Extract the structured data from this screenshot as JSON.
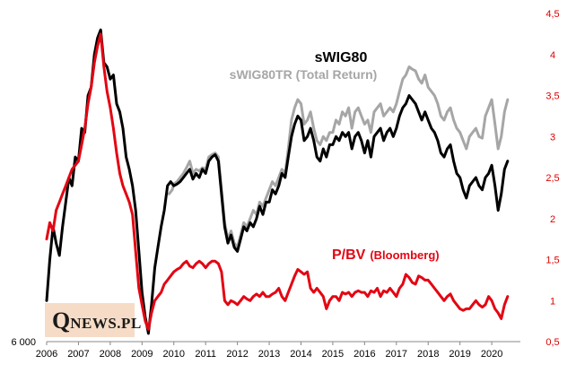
{
  "chart_data": {
    "type": "line",
    "title": "sWIG80",
    "subtitle": "sWIG80TR (Total Return)",
    "annotation": "P/BV",
    "annotation_source": "(Bloomberg)",
    "logo": "QNEWS.PL",
    "x_ticks": [
      "2006",
      "2007",
      "2008",
      "2009",
      "2010",
      "2011",
      "2012",
      "2013",
      "2014",
      "2015",
      "2016",
      "2017",
      "2018",
      "2019",
      "2020"
    ],
    "xlim": [
      2006.0,
      2020.9
    ],
    "left_axis": {
      "ticks": [
        "6 000"
      ],
      "ylim": [
        0.5,
        4.5
      ]
    },
    "right_axis": {
      "ticks": [
        "0,5",
        "1",
        "1,5",
        "2",
        "2,5",
        "3",
        "3,5",
        "4",
        "4,5"
      ],
      "ylim": [
        0.5,
        4.5
      ],
      "color": "#dd0000"
    },
    "grid": false,
    "colors": {
      "swig80": "#000000",
      "swig80tr": "#a6a6a6",
      "pbv": "#e30613"
    },
    "series": [
      {
        "name": "sWIG80TR (Total Return)",
        "axis": "right",
        "x": [
          2009.85,
          2009.95,
          2010.0,
          2010.1,
          2010.2,
          2010.3,
          2010.4,
          2010.5,
          2010.6,
          2010.7,
          2010.8,
          2010.9,
          2011.0,
          2011.1,
          2011.2,
          2011.3,
          2011.4,
          2011.5,
          2011.6,
          2011.7,
          2011.8,
          2011.9,
          2012.0,
          2012.1,
          2012.2,
          2012.3,
          2012.4,
          2012.5,
          2012.6,
          2012.7,
          2012.8,
          2012.9,
          2013.0,
          2013.1,
          2013.2,
          2013.3,
          2013.4,
          2013.5,
          2013.6,
          2013.7,
          2013.8,
          2013.9,
          2014.0,
          2014.1,
          2014.2,
          2014.3,
          2014.4,
          2014.5,
          2014.6,
          2014.7,
          2014.8,
          2014.9,
          2015.0,
          2015.1,
          2015.2,
          2015.3,
          2015.4,
          2015.5,
          2015.6,
          2015.7,
          2015.8,
          2015.9,
          2016.0,
          2016.1,
          2016.2,
          2016.3,
          2016.4,
          2016.5,
          2016.6,
          2016.7,
          2016.8,
          2016.9,
          2017.0,
          2017.1,
          2017.2,
          2017.3,
          2017.4,
          2017.5,
          2017.6,
          2017.7,
          2017.8,
          2017.9,
          2018.0,
          2018.1,
          2018.2,
          2018.3,
          2018.4,
          2018.5,
          2018.6,
          2018.7,
          2018.8,
          2018.9,
          2019.0,
          2019.1,
          2019.2,
          2019.3,
          2019.4,
          2019.5,
          2019.6,
          2019.7,
          2019.8,
          2019.9,
          2020.0,
          2020.1,
          2020.2,
          2020.3,
          2020.4,
          2020.5
        ],
        "y": [
          2.3,
          2.35,
          2.42,
          2.45,
          2.5,
          2.55,
          2.62,
          2.7,
          2.55,
          2.6,
          2.58,
          2.62,
          2.6,
          2.75,
          2.78,
          2.8,
          2.75,
          2.35,
          1.95,
          1.75,
          1.85,
          1.7,
          1.65,
          1.8,
          1.95,
          1.9,
          2.0,
          2.1,
          2.05,
          2.2,
          2.15,
          2.25,
          2.35,
          2.45,
          2.4,
          2.5,
          2.6,
          2.55,
          2.85,
          3.2,
          3.35,
          3.45,
          3.4,
          3.15,
          3.2,
          3.3,
          3.1,
          2.95,
          2.9,
          3.0,
          2.95,
          3.05,
          3.05,
          3.2,
          3.15,
          3.3,
          3.25,
          3.35,
          3.1,
          3.3,
          3.35,
          3.25,
          3.15,
          3.2,
          3.05,
          3.3,
          3.35,
          3.4,
          3.25,
          3.3,
          3.35,
          3.3,
          3.4,
          3.55,
          3.7,
          3.75,
          3.85,
          3.82,
          3.8,
          3.7,
          3.65,
          3.75,
          3.6,
          3.55,
          3.5,
          3.4,
          3.25,
          3.2,
          3.3,
          3.35,
          3.2,
          3.1,
          3.05,
          2.95,
          2.85,
          3.0,
          3.05,
          3.1,
          3.0,
          2.98,
          3.25,
          3.35,
          3.45,
          3.15,
          2.85,
          3.0,
          3.3,
          3.45
        ]
      },
      {
        "name": "sWIG80",
        "axis": "right",
        "x": [
          2006.0,
          2006.1,
          2006.2,
          2006.3,
          2006.4,
          2006.5,
          2006.6,
          2006.7,
          2006.8,
          2006.9,
          2007.0,
          2007.1,
          2007.2,
          2007.3,
          2007.4,
          2007.5,
          2007.6,
          2007.7,
          2007.8,
          2007.9,
          2008.0,
          2008.1,
          2008.2,
          2008.3,
          2008.4,
          2008.5,
          2008.6,
          2008.7,
          2008.8,
          2008.9,
          2009.0,
          2009.1,
          2009.2,
          2009.3,
          2009.4,
          2009.5,
          2009.6,
          2009.7,
          2009.8,
          2009.9,
          2010.0,
          2010.1,
          2010.2,
          2010.3,
          2010.4,
          2010.5,
          2010.6,
          2010.7,
          2010.8,
          2010.9,
          2011.0,
          2011.1,
          2011.2,
          2011.3,
          2011.4,
          2011.5,
          2011.6,
          2011.7,
          2011.8,
          2011.9,
          2012.0,
          2012.1,
          2012.2,
          2012.3,
          2012.4,
          2012.5,
          2012.6,
          2012.7,
          2012.8,
          2012.9,
          2013.0,
          2013.1,
          2013.2,
          2013.3,
          2013.4,
          2013.5,
          2013.6,
          2013.7,
          2013.8,
          2013.9,
          2014.0,
          2014.1,
          2014.2,
          2014.3,
          2014.4,
          2014.5,
          2014.6,
          2014.7,
          2014.8,
          2014.9,
          2015.0,
          2015.1,
          2015.2,
          2015.3,
          2015.4,
          2015.5,
          2015.6,
          2015.7,
          2015.8,
          2015.9,
          2016.0,
          2016.1,
          2016.2,
          2016.3,
          2016.4,
          2016.5,
          2016.6,
          2016.7,
          2016.8,
          2016.9,
          2017.0,
          2017.1,
          2017.2,
          2017.3,
          2017.4,
          2017.5,
          2017.6,
          2017.7,
          2017.8,
          2017.9,
          2018.0,
          2018.1,
          2018.2,
          2018.3,
          2018.4,
          2018.5,
          2018.6,
          2018.7,
          2018.8,
          2018.9,
          2019.0,
          2019.1,
          2019.2,
          2019.3,
          2019.4,
          2019.5,
          2019.6,
          2019.7,
          2019.8,
          2019.9,
          2020.0,
          2020.1,
          2020.2,
          2020.3,
          2020.4,
          2020.5
        ],
        "y": [
          1.0,
          1.5,
          1.9,
          1.7,
          1.55,
          1.9,
          2.2,
          2.5,
          2.4,
          2.75,
          2.7,
          3.1,
          3.05,
          3.5,
          3.6,
          4.0,
          4.2,
          4.3,
          3.9,
          3.85,
          3.7,
          3.75,
          3.4,
          3.3,
          3.1,
          2.75,
          2.6,
          2.4,
          2.1,
          1.6,
          1.1,
          0.8,
          0.6,
          0.95,
          1.4,
          1.65,
          1.9,
          2.1,
          2.4,
          2.45,
          2.4,
          2.42,
          2.45,
          2.5,
          2.55,
          2.6,
          2.48,
          2.55,
          2.5,
          2.6,
          2.55,
          2.7,
          2.75,
          2.78,
          2.7,
          2.3,
          1.9,
          1.7,
          1.8,
          1.65,
          1.6,
          1.75,
          1.9,
          1.85,
          1.95,
          1.9,
          2.0,
          2.15,
          2.05,
          2.2,
          2.2,
          2.35,
          2.3,
          2.4,
          2.55,
          2.5,
          2.75,
          3.0,
          3.15,
          3.25,
          3.2,
          2.95,
          3.0,
          3.1,
          2.95,
          2.75,
          2.7,
          2.85,
          2.75,
          2.9,
          2.9,
          3.0,
          2.95,
          3.05,
          3.0,
          3.05,
          2.85,
          3.0,
          3.05,
          2.95,
          2.8,
          2.95,
          2.75,
          3.0,
          3.05,
          3.1,
          2.95,
          3.05,
          3.1,
          3.0,
          3.1,
          3.25,
          3.35,
          3.4,
          3.5,
          3.45,
          3.4,
          3.3,
          3.2,
          3.3,
          3.2,
          3.1,
          3.05,
          2.95,
          2.8,
          2.75,
          2.85,
          2.9,
          2.7,
          2.55,
          2.5,
          2.35,
          2.25,
          2.4,
          2.45,
          2.5,
          2.4,
          2.35,
          2.5,
          2.55,
          2.65,
          2.4,
          2.1,
          2.3,
          2.6,
          2.7
        ]
      },
      {
        "name": "P/BV (Bloomberg)",
        "axis": "right",
        "x": [
          2006.0,
          2006.1,
          2006.2,
          2006.3,
          2006.4,
          2006.5,
          2006.6,
          2006.7,
          2006.8,
          2006.9,
          2007.0,
          2007.1,
          2007.2,
          2007.3,
          2007.4,
          2007.5,
          2007.6,
          2007.7,
          2007.8,
          2007.9,
          2008.0,
          2008.1,
          2008.2,
          2008.3,
          2008.4,
          2008.5,
          2008.6,
          2008.7,
          2008.8,
          2008.9,
          2009.0,
          2009.1,
          2009.2,
          2009.3,
          2009.4,
          2009.5,
          2009.6,
          2009.7,
          2009.8,
          2009.9,
          2010.0,
          2010.1,
          2010.2,
          2010.3,
          2010.4,
          2010.5,
          2010.6,
          2010.7,
          2010.8,
          2010.9,
          2011.0,
          2011.1,
          2011.2,
          2011.3,
          2011.4,
          2011.5,
          2011.6,
          2011.7,
          2011.8,
          2011.9,
          2012.0,
          2012.1,
          2012.2,
          2012.3,
          2012.4,
          2012.5,
          2012.6,
          2012.7,
          2012.8,
          2012.9,
          2013.0,
          2013.1,
          2013.2,
          2013.3,
          2013.4,
          2013.5,
          2013.6,
          2013.7,
          2013.8,
          2013.9,
          2014.0,
          2014.1,
          2014.2,
          2014.3,
          2014.4,
          2014.5,
          2014.6,
          2014.7,
          2014.8,
          2014.9,
          2015.0,
          2015.1,
          2015.2,
          2015.3,
          2015.4,
          2015.5,
          2015.6,
          2015.7,
          2015.8,
          2015.9,
          2016.0,
          2016.1,
          2016.2,
          2016.3,
          2016.4,
          2016.5,
          2016.6,
          2016.7,
          2016.8,
          2016.9,
          2017.0,
          2017.1,
          2017.2,
          2017.3,
          2017.4,
          2017.5,
          2017.6,
          2017.7,
          2017.8,
          2017.9,
          2018.0,
          2018.1,
          2018.2,
          2018.3,
          2018.4,
          2018.5,
          2018.6,
          2018.7,
          2018.8,
          2018.9,
          2019.0,
          2019.1,
          2019.2,
          2019.3,
          2019.4,
          2019.5,
          2019.6,
          2019.7,
          2019.8,
          2019.9,
          2020.0,
          2020.1,
          2020.2,
          2020.3,
          2020.4,
          2020.5
        ],
        "y": [
          1.75,
          1.95,
          1.85,
          2.1,
          2.2,
          2.3,
          2.4,
          2.5,
          2.6,
          2.65,
          2.7,
          2.9,
          3.1,
          3.4,
          3.6,
          3.9,
          4.1,
          4.25,
          3.85,
          3.55,
          3.35,
          3.1,
          2.8,
          2.55,
          2.4,
          2.3,
          2.2,
          2.05,
          1.6,
          1.15,
          0.95,
          0.75,
          0.65,
          0.85,
          1.0,
          1.05,
          1.1,
          1.2,
          1.25,
          1.3,
          1.35,
          1.38,
          1.4,
          1.45,
          1.48,
          1.42,
          1.4,
          1.45,
          1.48,
          1.45,
          1.4,
          1.45,
          1.48,
          1.48,
          1.45,
          1.35,
          1.0,
          0.95,
          1.0,
          0.98,
          0.95,
          1.0,
          1.05,
          1.02,
          1.0,
          1.05,
          1.08,
          1.05,
          1.1,
          1.05,
          1.05,
          1.08,
          1.1,
          1.15,
          1.05,
          1.0,
          1.1,
          1.2,
          1.3,
          1.38,
          1.35,
          1.32,
          1.35,
          1.15,
          1.1,
          1.15,
          1.1,
          1.05,
          0.9,
          1.0,
          1.05,
          1.05,
          1.0,
          1.1,
          1.08,
          1.1,
          1.05,
          1.1,
          1.12,
          1.1,
          1.1,
          1.05,
          1.12,
          1.1,
          1.15,
          1.05,
          1.12,
          1.1,
          1.15,
          1.1,
          1.05,
          1.15,
          1.2,
          1.32,
          1.28,
          1.22,
          1.2,
          1.3,
          1.28,
          1.25,
          1.25,
          1.2,
          1.15,
          1.1,
          1.05,
          1.0,
          1.05,
          1.08,
          1.0,
          0.95,
          0.9,
          0.88,
          0.9,
          0.9,
          0.95,
          1.0,
          0.95,
          0.92,
          0.95,
          1.05,
          1.0,
          0.9,
          0.85,
          0.78,
          0.95,
          1.05
        ]
      }
    ]
  }
}
